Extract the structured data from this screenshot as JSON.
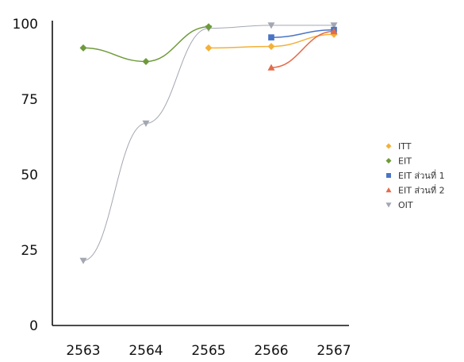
{
  "chart_data": {
    "type": "line",
    "categories": [
      "2563",
      "2564",
      "2565",
      "2566",
      "2567"
    ],
    "ylim": [
      0,
      100
    ],
    "yticks": [
      0,
      25,
      50,
      75,
      100
    ],
    "grid": false,
    "legend_position": "right",
    "title": "",
    "xlabel": "",
    "ylabel": "",
    "series": [
      {
        "name": "ITT",
        "color": "#f3b13a",
        "marker": "diamond",
        "values": [
          null,
          null,
          92,
          92.5,
          96.5
        ]
      },
      {
        "name": "EIT",
        "color": "#6e9a3b",
        "marker": "diamond",
        "values": [
          92,
          87.5,
          99,
          null,
          null
        ]
      },
      {
        "name": "EIT ส่วนที่ 1",
        "color": "#4a74c4",
        "marker": "square",
        "values": [
          null,
          null,
          null,
          95.5,
          98
        ]
      },
      {
        "name": "EIT ส่วนที่ 2",
        "color": "#e46b4a",
        "marker": "triangle",
        "values": [
          null,
          null,
          null,
          85.5,
          97.5
        ]
      },
      {
        "name": "OIT",
        "color": "#a3a7b2",
        "marker": "triangle-down",
        "values": [
          21.5,
          67,
          98.5,
          99.5,
          99.5
        ]
      }
    ]
  }
}
